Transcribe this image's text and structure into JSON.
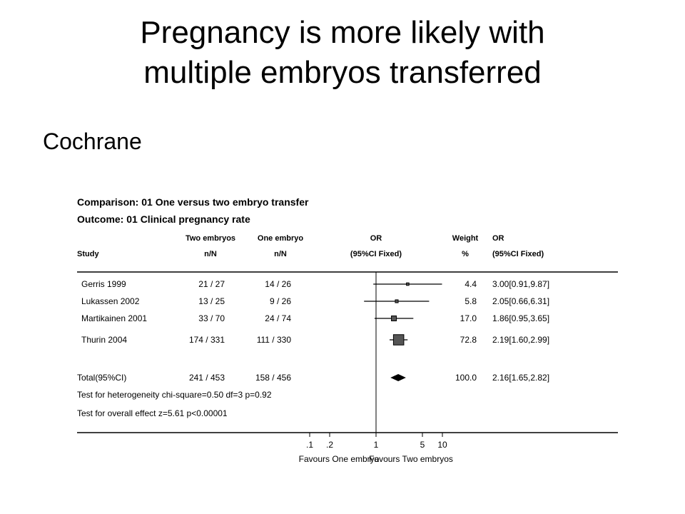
{
  "slide": {
    "title_line1": "Pregnancy is more likely with",
    "title_line2": "multiple embryos transferred",
    "subtitle": "Cochrane"
  },
  "chart_data": {
    "type": "forest",
    "comparison": "Comparison: 01 One versus two embryo transfer",
    "outcome": "Outcome:      01 Clinical pregnancy rate",
    "headers": {
      "study": "Study",
      "two_top": "Two embryos",
      "two_bottom": "n/N",
      "one_top": "One embryo",
      "one_bottom": "n/N",
      "or_top": "OR",
      "or_bottom": "(95%CI Fixed)",
      "weight_top": "Weight",
      "weight_bottom": "%",
      "ci_top": "OR",
      "ci_bottom": "(95%CI Fixed)"
    },
    "studies": [
      {
        "study": "Gerris 1999",
        "two": "21 / 27",
        "one": "14 / 26",
        "weight": "4.4",
        "ci_text": "3.00[0.91,9.87]",
        "or": 3.0,
        "lo": 0.91,
        "hi": 9.87
      },
      {
        "study": "Lukassen 2002",
        "two": "13 / 25",
        "one": "9 / 26",
        "weight": "5.8",
        "ci_text": "2.05[0.66,6.31]",
        "or": 2.05,
        "lo": 0.66,
        "hi": 6.31
      },
      {
        "study": "Martikainen 2001",
        "two": "33 / 70",
        "one": "24 / 74",
        "weight": "17.0",
        "ci_text": "1.86[0.95,3.65]",
        "or": 1.86,
        "lo": 0.95,
        "hi": 3.65
      },
      {
        "study": "Thurin 2004",
        "two": "174 / 331",
        "one": "111 / 330",
        "weight": "72.8",
        "ci_text": "2.19[1.60,2.99]",
        "or": 2.19,
        "lo": 1.6,
        "hi": 2.99
      }
    ],
    "total": {
      "study": "Total(95%CI)",
      "two": "241 / 453",
      "one": "158 / 456",
      "weight": "100.0",
      "ci_text": "2.16[1.65,2.82]",
      "or": 2.16,
      "lo": 1.65,
      "hi": 2.82
    },
    "heterogeneity": "Test for heterogeneity chi-square=0.50  df=3  p=0.92",
    "overall_effect": "Test for overall effect  z=5.61  p<0.00001",
    "x_scale": "log",
    "x_range": [
      0.1,
      10
    ],
    "x_ticks": [
      {
        "value": 0.1,
        "label": ".1"
      },
      {
        "value": 0.2,
        "label": ".2"
      },
      {
        "value": 1,
        "label": "1"
      },
      {
        "value": 5,
        "label": "5"
      },
      {
        "value": 10,
        "label": "10"
      }
    ],
    "favours_left": "Favours One embryo",
    "favours_right": "Favours Two  embryos"
  }
}
